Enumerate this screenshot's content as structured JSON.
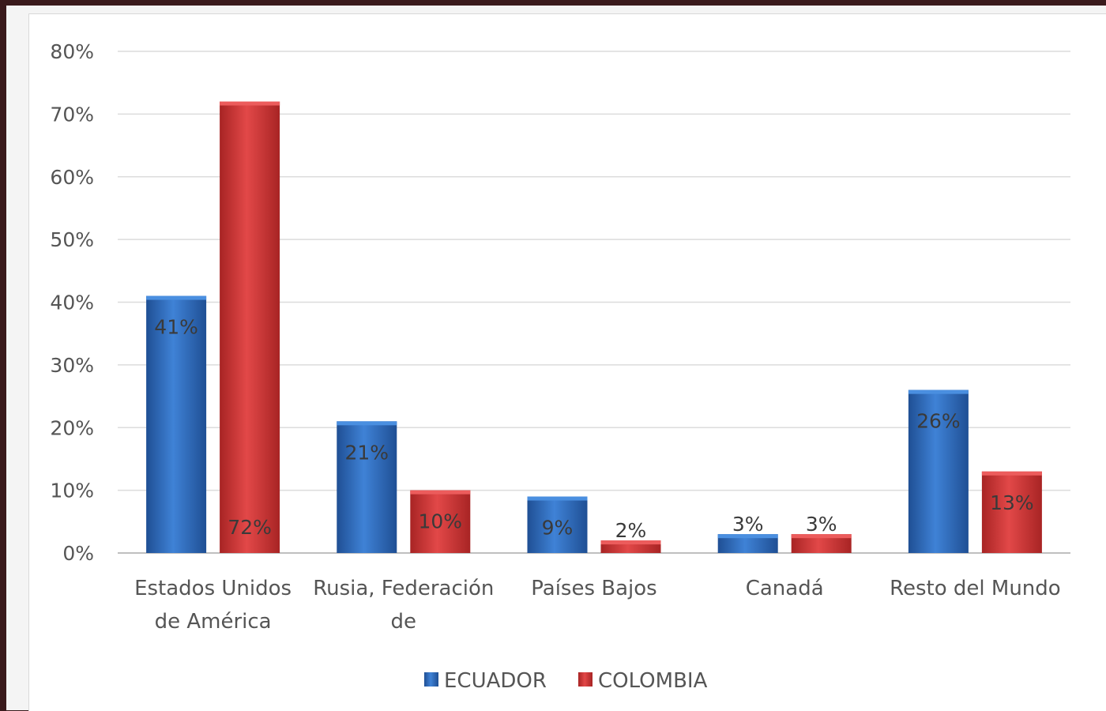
{
  "chart_data": {
    "type": "bar",
    "categories": [
      [
        "Estados Unidos",
        "de América"
      ],
      [
        "Rusia, Federación",
        "de"
      ],
      [
        "Países Bajos"
      ],
      [
        "Canadá"
      ],
      [
        "Resto del Mundo"
      ]
    ],
    "series": [
      {
        "name": "ECUADOR",
        "color": "#2e6bc0",
        "values": [
          41,
          21,
          9,
          3,
          26
        ],
        "labels": [
          "41%",
          "21%",
          "9%",
          "3%",
          "26%"
        ]
      },
      {
        "name": "COLOMBIA",
        "color": "#d63a3a",
        "values": [
          72,
          10,
          2,
          3,
          13
        ],
        "labels": [
          "72%",
          "10%",
          "2%",
          "3%",
          "13%"
        ]
      }
    ],
    "ylim": [
      0,
      80
    ],
    "yticks": [
      0,
      10,
      20,
      30,
      40,
      50,
      60,
      70,
      80
    ],
    "ytick_labels": [
      "0%",
      "10%",
      "20%",
      "30%",
      "40%",
      "50%",
      "60%",
      "70%",
      "80%"
    ],
    "grid": true,
    "legend_position": "bottom",
    "title": "",
    "xlabel": "",
    "ylabel": ""
  }
}
